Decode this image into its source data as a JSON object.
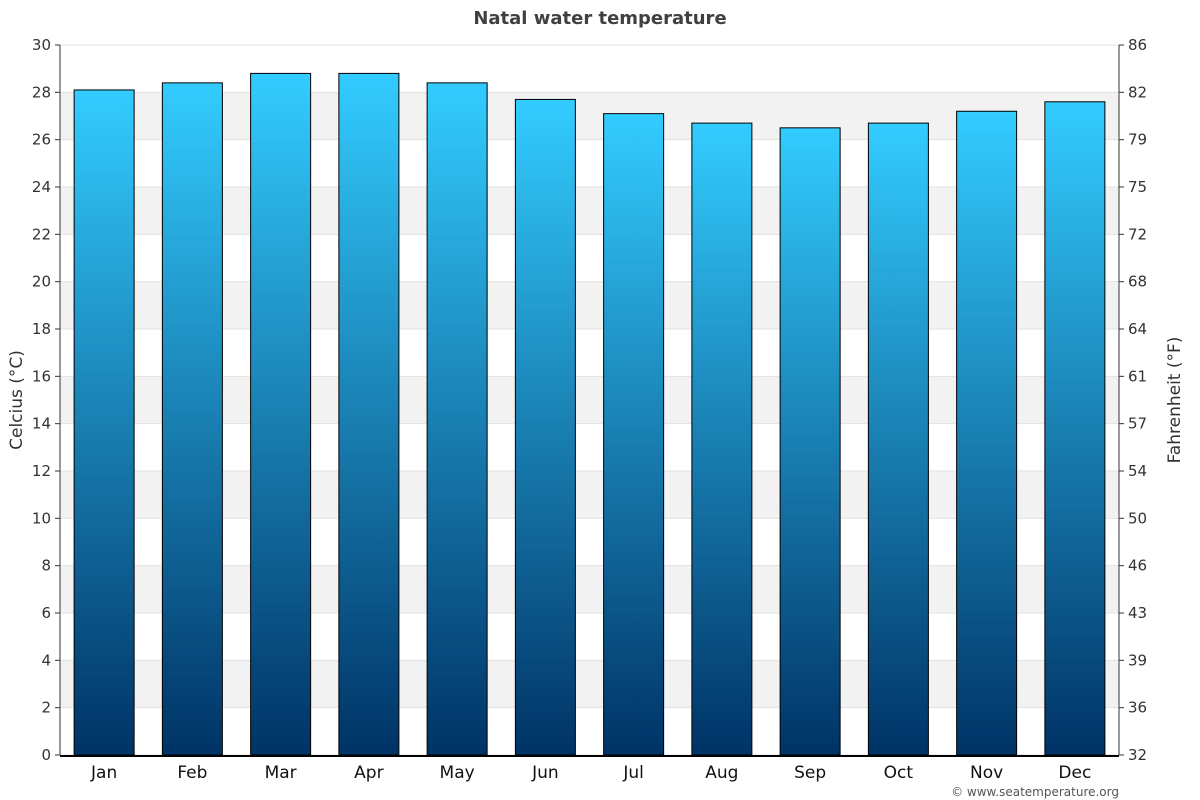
{
  "chart_data": {
    "type": "bar",
    "title": "Natal water temperature",
    "categories": [
      "Jan",
      "Feb",
      "Mar",
      "Apr",
      "May",
      "Jun",
      "Jul",
      "Aug",
      "Sep",
      "Oct",
      "Nov",
      "Dec"
    ],
    "values": [
      28.1,
      28.4,
      28.8,
      28.8,
      28.4,
      27.7,
      27.1,
      26.7,
      26.5,
      26.7,
      27.2,
      27.6
    ],
    "ylabel_left": "Celcius (°C)",
    "ylabel_right": "Fahrenheit (°F)",
    "ylim": [
      0,
      30
    ],
    "left_ticks": [
      "0",
      "2",
      "4",
      "6",
      "8",
      "10",
      "12",
      "14",
      "16",
      "18",
      "20",
      "22",
      "24",
      "26",
      "28",
      "30"
    ],
    "right_ticks": [
      "32",
      "36",
      "39",
      "43",
      "46",
      "50",
      "54",
      "57",
      "61",
      "64",
      "68",
      "72",
      "75",
      "79",
      "82",
      "86"
    ],
    "grid": true,
    "colors": {
      "bar_top": "#33ccff",
      "bar_bottom": "#003366",
      "band": "#f2f2f2"
    }
  },
  "credit": "© www.seatemperature.org"
}
